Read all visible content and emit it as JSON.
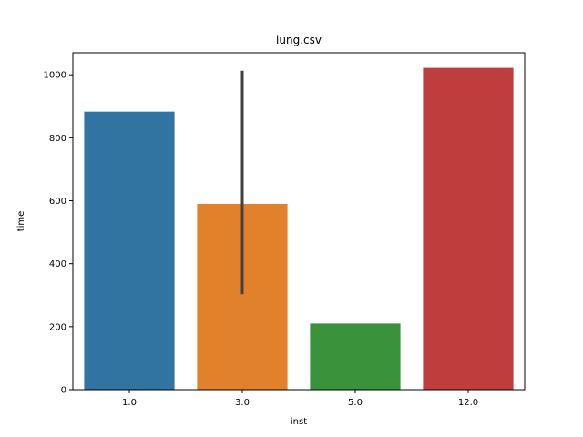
{
  "chart_data": {
    "type": "bar",
    "title": "lung.csv",
    "xlabel": "inst",
    "ylabel": "time",
    "categories": [
      "1.0",
      "3.0",
      "5.0",
      "12.0"
    ],
    "values": [
      883,
      590,
      210,
      1022
    ],
    "error_bars": [
      null,
      [
        303,
        1013
      ],
      null,
      null
    ],
    "colors": [
      "#3274a1",
      "#e1812c",
      "#3a923a",
      "#c03d3e"
    ],
    "error_color": "#424242",
    "ylim": [
      0,
      1070
    ],
    "yticks": [
      0,
      200,
      400,
      600,
      800,
      1000
    ],
    "grid": false,
    "legend": "none"
  }
}
